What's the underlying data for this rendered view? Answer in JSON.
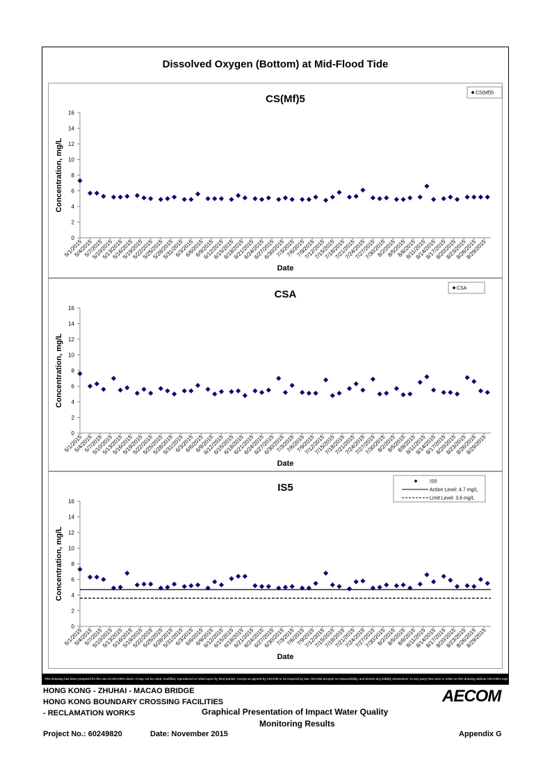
{
  "page": {
    "title": "Dissolved Oxygen (Bottom) at Mid-Flood Tide",
    "disclaimer": "This Drawing has been prepared for the use of AECOM's client. It may not be used, modified, reproduced or relied upon by third parties, except as agreed by AECOM or as required by law. AECOM accepts no responsibility, and denies any liability whatsoever, to any party that uses or relies on this drawing without AECOM's express written consent."
  },
  "footer": {
    "line1": "HONG KONG - ZHUHAI - MACAO BRIDGE",
    "line2": "HONG KONG BOUNDARY CROSSING FACILITIES",
    "line3": "- RECLAMATION WORKS",
    "center1": "Graphical Presentation of Impact Water Quality",
    "center2": "Monitoring Results",
    "project": "Project No.: 60249820",
    "date": "Date: November 2015",
    "appendix": "Appendix G",
    "logo": "AECOM"
  },
  "chart_data": [
    {
      "type": "scatter",
      "title": "CS(Mf)5",
      "xlabel": "Date",
      "ylabel": "Concentration, mg/L",
      "ylim": [
        0,
        16
      ],
      "yticks": [
        0,
        2,
        4,
        6,
        8,
        10,
        12,
        14,
        16
      ],
      "xticks": [
        "5/1/2015",
        "5/4/2015",
        "5/7/2015",
        "5/10/2015",
        "5/13/2015",
        "5/16/2015",
        "5/19/2015",
        "5/22/2015",
        "5/25/2015",
        "5/28/2015",
        "5/31/2015",
        "6/3/2015",
        "6/6/2015",
        "6/9/2015",
        "6/12/2015",
        "6/15/2015",
        "6/18/2015",
        "6/21/2015",
        "6/24/2015",
        "6/27/2015",
        "6/30/2015",
        "7/3/2015",
        "7/6/2015",
        "7/9/2015",
        "7/12/2015",
        "7/15/2015",
        "7/18/2015",
        "7/21/2015",
        "7/24/2015",
        "7/27/2015",
        "7/30/2015",
        "8/2/2015",
        "8/5/2015",
        "8/8/2015",
        "8/11/2015",
        "8/14/2015",
        "8/17/2015",
        "8/20/2015",
        "8/23/2015",
        "8/26/2015",
        "8/29/2015"
      ],
      "legend_position": "top-right",
      "color": "#0b0b6e",
      "series": [
        {
          "name": "CS(Mf)5",
          "x": [
            0,
            3,
            5,
            7,
            10,
            12,
            14,
            17,
            19,
            21,
            24,
            26,
            28,
            31,
            33,
            35,
            38,
            40,
            42,
            45,
            47,
            49,
            52,
            54,
            56,
            59,
            61,
            63,
            66,
            68,
            70,
            73,
            75,
            77,
            80,
            82,
            84,
            87,
            89,
            91,
            94,
            96,
            98,
            101,
            103,
            105,
            108,
            110,
            112,
            115,
            117,
            119,
            121
          ],
          "y": [
            7.3,
            5.7,
            5.7,
            5.3,
            5.2,
            5.2,
            5.3,
            5.4,
            5.1,
            5.0,
            4.9,
            5.0,
            5.2,
            4.9,
            4.9,
            5.6,
            5.0,
            5.0,
            5.0,
            4.9,
            5.4,
            5.1,
            5.0,
            4.9,
            5.1,
            4.9,
            5.1,
            4.9,
            4.9,
            4.9,
            5.2,
            4.8,
            5.2,
            5.8,
            5.2,
            5.3,
            6.1,
            5.1,
            5.0,
            5.1,
            4.9,
            4.9,
            5.1,
            5.2,
            6.6,
            4.9,
            5.0,
            5.2,
            4.9,
            5.2,
            5.2,
            5.2,
            5.2
          ]
        }
      ]
    },
    {
      "type": "scatter",
      "title": "CSA",
      "xlabel": "Date",
      "ylabel": "Concentration, mg/L",
      "ylim": [
        0,
        16
      ],
      "yticks": [
        0,
        2,
        4,
        6,
        8,
        10,
        12,
        14,
        16
      ],
      "xticks": [
        "5/1/2015",
        "5/4/2015",
        "5/7/2015",
        "5/10/2015",
        "5/13/2015",
        "5/16/2015",
        "5/19/2015",
        "5/22/2015",
        "5/25/2015",
        "5/28/2015",
        "5/31/2015",
        "6/3/2015",
        "6/6/2015",
        "6/9/2015",
        "6/12/2015",
        "6/15/2015",
        "6/18/2015",
        "6/21/2015",
        "6/24/2015",
        "6/27/2015",
        "6/30/2015",
        "7/3/2015",
        "7/6/2015",
        "7/9/2015",
        "7/12/2015",
        "7/15/2015",
        "7/18/2015",
        "7/21/2015",
        "7/24/2015",
        "7/27/2015",
        "7/30/2015",
        "8/2/2015",
        "8/5/2015",
        "8/8/2015",
        "8/11/2015",
        "8/14/2015",
        "8/17/2015",
        "8/20/2015",
        "8/23/2015",
        "8/26/2015",
        "8/29/2015"
      ],
      "legend_position": "top-right",
      "color": "#0b0b6e",
      "series": [
        {
          "name": "CSA",
          "x": [
            0,
            3,
            5,
            7,
            10,
            12,
            14,
            17,
            19,
            21,
            24,
            26,
            28,
            31,
            33,
            35,
            38,
            40,
            42,
            45,
            47,
            49,
            52,
            54,
            56,
            59,
            61,
            63,
            66,
            68,
            70,
            73,
            75,
            77,
            80,
            82,
            84,
            87,
            89,
            91,
            94,
            96,
            98,
            101,
            103,
            105,
            108,
            110,
            112,
            115,
            117,
            119,
            121
          ],
          "y": [
            7.6,
            6.0,
            6.3,
            5.6,
            7.0,
            5.5,
            5.8,
            5.1,
            5.6,
            5.1,
            5.7,
            5.4,
            5.0,
            5.4,
            5.4,
            6.1,
            5.6,
            5.0,
            5.3,
            5.3,
            5.4,
            4.8,
            5.4,
            5.2,
            5.5,
            7.0,
            5.2,
            6.1,
            5.2,
            5.1,
            5.1,
            6.8,
            4.8,
            5.1,
            5.7,
            6.3,
            5.5,
            6.9,
            5.0,
            5.1,
            5.7,
            4.9,
            5.0,
            6.5,
            7.2,
            5.5,
            5.2,
            5.2,
            5.0,
            7.1,
            6.6,
            5.4,
            5.2
          ]
        }
      ]
    },
    {
      "type": "scatter",
      "title": "IS5",
      "xlabel": "Date",
      "ylabel": "Concentration, mg/L",
      "ylim": [
        0,
        16
      ],
      "yticks": [
        0,
        2,
        4,
        6,
        8,
        10,
        12,
        14,
        16
      ],
      "xticks": [
        "5/1/2015",
        "5/4/2015",
        "5/7/2015",
        "5/10/2015",
        "5/13/2015",
        "5/16/2015",
        "5/19/2015",
        "5/22/2015",
        "5/25/2015",
        "5/28/2015",
        "5/31/2015",
        "6/3/2015",
        "6/6/2015",
        "6/9/2015",
        "6/12/2015",
        "6/15/2015",
        "6/18/2015",
        "6/21/2015",
        "6/24/2015",
        "6/27/2015",
        "6/30/2015",
        "7/3/2015",
        "7/6/2015",
        "7/9/2015",
        "7/12/2015",
        "7/15/2015",
        "7/18/2015",
        "7/21/2015",
        "7/24/2015",
        "7/27/2015",
        "7/30/2015",
        "8/2/2015",
        "8/5/2015",
        "8/8/2015",
        "8/11/2015",
        "8/14/2015",
        "8/17/2015",
        "8/20/2015",
        "8/23/2015",
        "8/26/2015",
        "8/29/2015"
      ],
      "legend_position": "top-right",
      "color": "#0b0b6e",
      "series": [
        {
          "name": "IS5",
          "x": [
            0,
            3,
            5,
            7,
            10,
            12,
            14,
            17,
            19,
            21,
            24,
            26,
            28,
            31,
            33,
            35,
            38,
            40,
            42,
            45,
            47,
            49,
            52,
            54,
            56,
            59,
            61,
            63,
            66,
            68,
            70,
            73,
            75,
            77,
            80,
            82,
            84,
            87,
            89,
            91,
            94,
            96,
            98,
            101,
            103,
            105,
            108,
            110,
            112,
            115,
            117,
            119,
            121
          ],
          "y": [
            7.3,
            6.3,
            6.3,
            6.0,
            4.9,
            5.0,
            6.8,
            5.3,
            5.4,
            5.4,
            4.9,
            5.0,
            5.4,
            5.1,
            5.2,
            5.3,
            4.9,
            5.7,
            5.3,
            6.1,
            6.4,
            6.4,
            5.2,
            5.1,
            5.1,
            4.9,
            5.0,
            5.1,
            4.9,
            4.9,
            5.5,
            6.8,
            5.3,
            5.1,
            4.8,
            5.7,
            5.8,
            4.9,
            5.0,
            5.3,
            5.2,
            5.3,
            4.9,
            5.4,
            6.6,
            5.7,
            6.4,
            5.9,
            5.1,
            5.2,
            5.1,
            6.0,
            5.5
          ]
        }
      ],
      "reference_lines": [
        {
          "name": "Action Level: 4.7 mg/L",
          "value": 4.7,
          "style": "solid"
        },
        {
          "name": "Limit Level: 3.6 mg/L",
          "value": 3.6,
          "style": "dashed"
        }
      ]
    }
  ]
}
